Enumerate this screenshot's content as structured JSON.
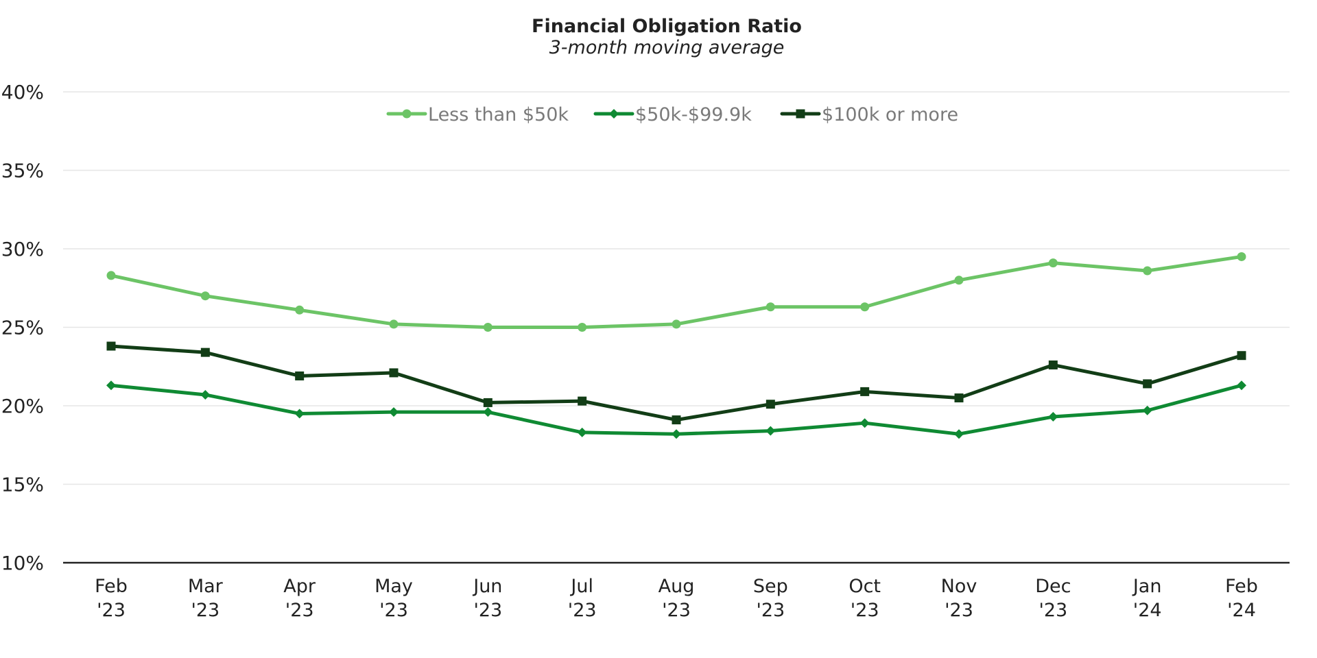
{
  "chart_data": {
    "type": "line",
    "title": "Financial Obligation Ratio",
    "subtitle": "3-month moving average",
    "xlabel": "",
    "ylabel": "",
    "categories": [
      [
        "Feb",
        "'23"
      ],
      [
        "Mar",
        "'23"
      ],
      [
        "Apr",
        "'23"
      ],
      [
        "May",
        "'23"
      ],
      [
        "Jun",
        "'23"
      ],
      [
        "Jul",
        "'23"
      ],
      [
        "Aug",
        "'23"
      ],
      [
        "Sep",
        "'23"
      ],
      [
        "Oct",
        "'23"
      ],
      [
        "Nov",
        "'23"
      ],
      [
        "Dec",
        "'23"
      ],
      [
        "Jan",
        "'24"
      ],
      [
        "Feb",
        "'24"
      ]
    ],
    "ylim": [
      10,
      40
    ],
    "yticks": [
      10,
      15,
      20,
      25,
      30,
      35,
      40
    ],
    "ytick_labels": [
      "10%",
      "15%",
      "20%",
      "25%",
      "30%",
      "35%",
      "40%"
    ],
    "grid": true,
    "legend_position": "top-center",
    "series": [
      {
        "name": "Less than $50k",
        "color": "#6cc466",
        "marker": "circle",
        "values": [
          28.3,
          27.0,
          26.1,
          25.2,
          25.0,
          25.0,
          25.2,
          26.3,
          26.3,
          28.0,
          29.1,
          28.6,
          29.5
        ]
      },
      {
        "name": "$50k-$99.9k",
        "color": "#0f8a33",
        "marker": "diamond",
        "values": [
          21.3,
          20.7,
          19.5,
          19.6,
          19.6,
          18.3,
          18.2,
          18.4,
          18.9,
          18.2,
          19.3,
          19.7,
          21.3
        ]
      },
      {
        "name": "$100k or more",
        "color": "#123d16",
        "marker": "square",
        "values": [
          23.8,
          23.4,
          21.9,
          22.1,
          20.2,
          20.3,
          19.1,
          20.1,
          20.9,
          20.5,
          22.6,
          21.4,
          23.2
        ]
      }
    ]
  }
}
